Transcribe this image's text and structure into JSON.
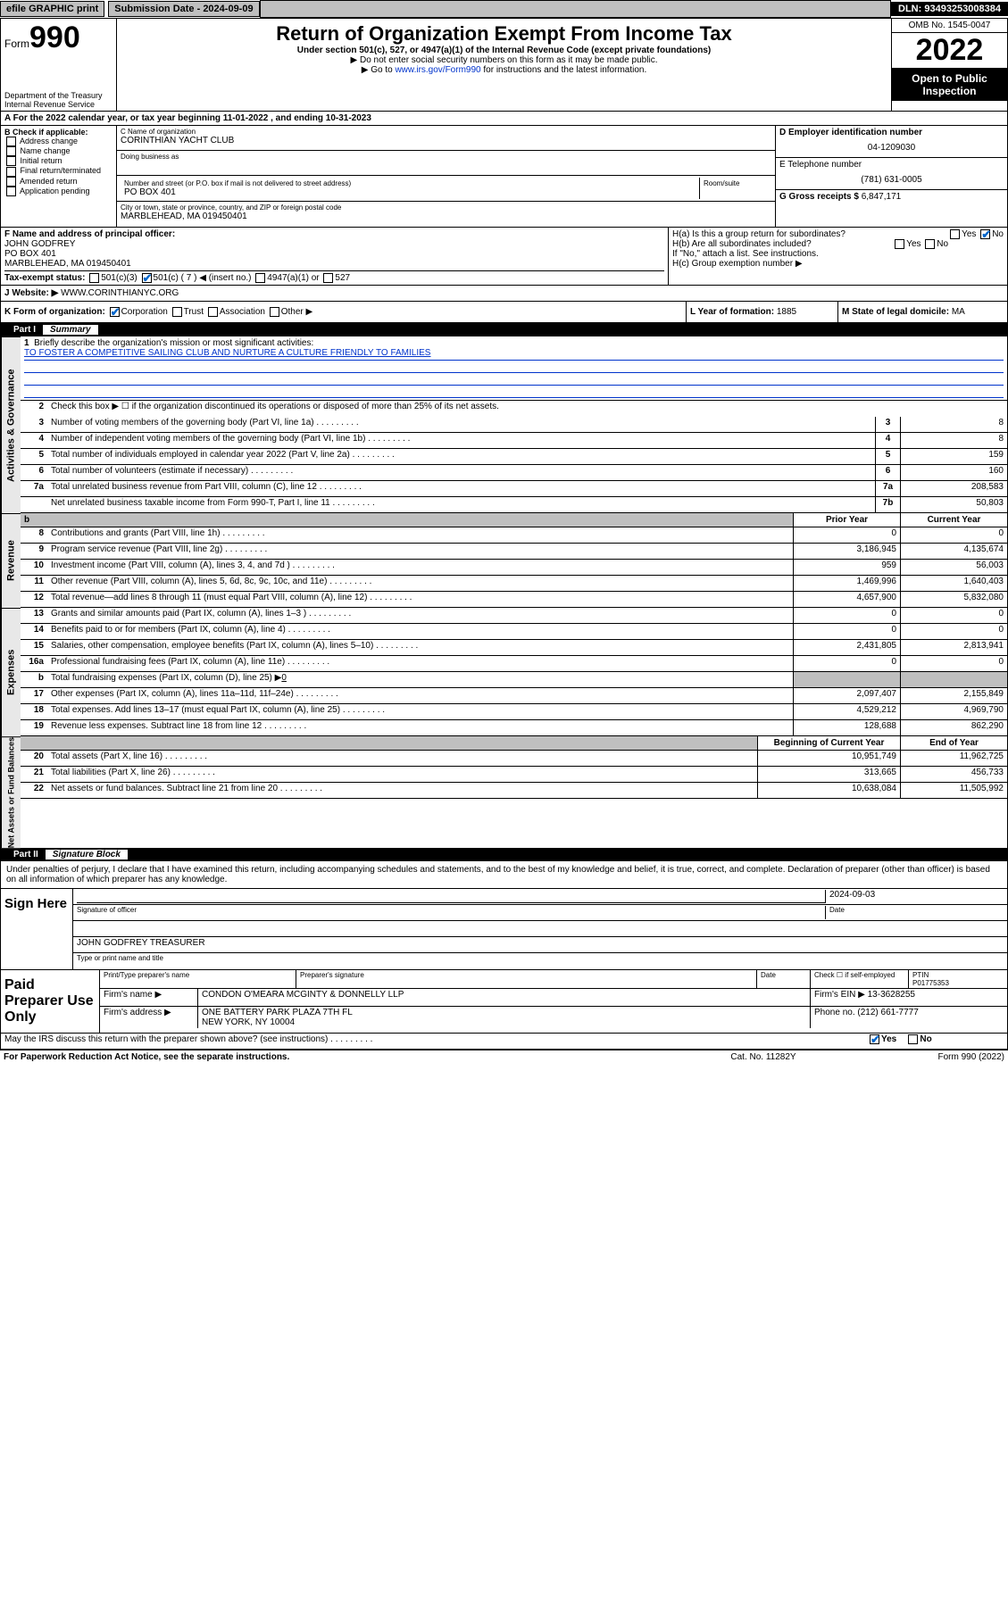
{
  "topbar": {
    "efile": "efile GRAPHIC print",
    "submission": "Submission Date - 2024-09-09",
    "dln": "DLN: 93493253008384"
  },
  "header": {
    "form_word": "Form",
    "form_num": "990",
    "dept": "Department of the Treasury",
    "irs": "Internal Revenue Service",
    "title": "Return of Organization Exempt From Income Tax",
    "sub": "Under section 501(c), 527, or 4947(a)(1) of the Internal Revenue Code (except private foundations)",
    "note1": "▶ Do not enter social security numbers on this form as it may be made public.",
    "note2_pre": "▶ Go to ",
    "note2_link": "www.irs.gov/Form990",
    "note2_post": " for instructions and the latest information.",
    "omb": "OMB No. 1545-0047",
    "year": "2022",
    "open": "Open to Public Inspection"
  },
  "rowA": "A For the 2022 calendar year, or tax year beginning 11-01-2022   , and ending 10-31-2023",
  "colB": {
    "title": "B Check if applicable:",
    "items": [
      "Address change",
      "Name change",
      "Initial return",
      "Final return/terminated",
      "Amended return",
      "Application pending"
    ]
  },
  "colC": {
    "name_lbl": "C Name of organization",
    "name": "CORINTHIAN YACHT CLUB",
    "dba_lbl": "Doing business as",
    "dba": "",
    "street_lbl": "Number and street (or P.O. box if mail is not delivered to street address)",
    "room_lbl": "Room/suite",
    "street": "PO BOX 401",
    "city_lbl": "City or town, state or province, country, and ZIP or foreign postal code",
    "city": "MARBLEHEAD, MA  019450401"
  },
  "colD": {
    "ein_lbl": "D Employer identification number",
    "ein": "04-1209030",
    "tel_lbl": "E Telephone number",
    "tel": "(781) 631-0005",
    "gross_lbl": "G Gross receipts $",
    "gross": "6,847,171"
  },
  "rowF": {
    "lbl": "F Name and address of principal officer:",
    "name": "JOHN GODFREY",
    "addr1": "PO BOX 401",
    "addr2": "MARBLEHEAD, MA  019450401"
  },
  "rowH": {
    "a": "H(a)  Is this a group return for subordinates?",
    "a_yes": "Yes",
    "a_no": "No",
    "b": "H(b)  Are all subordinates included?",
    "b_note": "If \"No,\" attach a list. See instructions.",
    "c": "H(c)  Group exemption number ▶"
  },
  "rowI": {
    "lbl": "Tax-exempt status:",
    "o1": "501(c)(3)",
    "o2": "501(c) ( 7 ) ◀ (insert no.)",
    "o3": "4947(a)(1) or",
    "o4": "527"
  },
  "rowJ": {
    "lbl": "J   Website: ▶",
    "val": "WWW.CORINTHIANYC.ORG"
  },
  "rowK": {
    "lbl": "K Form of organization:",
    "o1": "Corporation",
    "o2": "Trust",
    "o3": "Association",
    "o4": "Other ▶"
  },
  "rowL": {
    "lbl": "L Year of formation:",
    "val": "1885"
  },
  "rowM": {
    "lbl": "M State of legal domicile:",
    "val": "MA"
  },
  "part1": {
    "num": "Part I",
    "title": "Summary"
  },
  "sideLabels": {
    "ag": "Activities & Governance",
    "rev": "Revenue",
    "exp": "Expenses",
    "na": "Net Assets or Fund Balances"
  },
  "summary": {
    "l1_lbl": "Briefly describe the organization's mission or most significant activities:",
    "l1_val": "TO FOSTER A COMPETITIVE SAILING CLUB AND NURTURE A CULTURE FRIENDLY TO FAMILIES",
    "l2": "Check this box ▶ ☐  if the organization discontinued its operations or disposed of more than 25% of its net assets.",
    "lines_single": [
      {
        "n": "3",
        "d": "Number of voting members of the governing body (Part VI, line 1a)",
        "box": "3",
        "v": "8"
      },
      {
        "n": "4",
        "d": "Number of independent voting members of the governing body (Part VI, line 1b)",
        "box": "4",
        "v": "8"
      },
      {
        "n": "5",
        "d": "Total number of individuals employed in calendar year 2022 (Part V, line 2a)",
        "box": "5",
        "v": "159"
      },
      {
        "n": "6",
        "d": "Total number of volunteers (estimate if necessary)",
        "box": "6",
        "v": "160"
      },
      {
        "n": "7a",
        "d": "Total unrelated business revenue from Part VIII, column (C), line 12",
        "box": "7a",
        "v": "208,583"
      },
      {
        "n": "",
        "d": "Net unrelated business taxable income from Form 990-T, Part I, line 11",
        "box": "7b",
        "v": "50,803"
      }
    ],
    "col_head_b": "b",
    "col_head_prior": "Prior Year",
    "col_head_curr": "Current Year",
    "rev_lines": [
      {
        "n": "8",
        "d": "Contributions and grants (Part VIII, line 1h)",
        "p": "0",
        "c": "0"
      },
      {
        "n": "9",
        "d": "Program service revenue (Part VIII, line 2g)",
        "p": "3,186,945",
        "c": "4,135,674"
      },
      {
        "n": "10",
        "d": "Investment income (Part VIII, column (A), lines 3, 4, and 7d )",
        "p": "959",
        "c": "56,003"
      },
      {
        "n": "11",
        "d": "Other revenue (Part VIII, column (A), lines 5, 6d, 8c, 9c, 10c, and 11e)",
        "p": "1,469,996",
        "c": "1,640,403"
      },
      {
        "n": "12",
        "d": "Total revenue—add lines 8 through 11 (must equal Part VIII, column (A), line 12)",
        "p": "4,657,900",
        "c": "5,832,080"
      }
    ],
    "exp_lines": [
      {
        "n": "13",
        "d": "Grants and similar amounts paid (Part IX, column (A), lines 1–3 )",
        "p": "0",
        "c": "0"
      },
      {
        "n": "14",
        "d": "Benefits paid to or for members (Part IX, column (A), line 4)",
        "p": "0",
        "c": "0"
      },
      {
        "n": "15",
        "d": "Salaries, other compensation, employee benefits (Part IX, column (A), lines 5–10)",
        "p": "2,431,805",
        "c": "2,813,941"
      },
      {
        "n": "16a",
        "d": "Professional fundraising fees (Part IX, column (A), line 11e)",
        "p": "0",
        "c": "0"
      }
    ],
    "l16b": {
      "n": "b",
      "d": "Total fundraising expenses (Part IX, column (D), line 25) ▶",
      "v": "0"
    },
    "exp_lines2": [
      {
        "n": "17",
        "d": "Other expenses (Part IX, column (A), lines 11a–11d, 11f–24e)",
        "p": "2,097,407",
        "c": "2,155,849"
      },
      {
        "n": "18",
        "d": "Total expenses. Add lines 13–17 (must equal Part IX, column (A), line 25)",
        "p": "4,529,212",
        "c": "4,969,790"
      },
      {
        "n": "19",
        "d": "Revenue less expenses. Subtract line 18 from line 12",
        "p": "128,688",
        "c": "862,290"
      }
    ],
    "na_head_b": "Beginning of Current Year",
    "na_head_e": "End of Year",
    "na_lines": [
      {
        "n": "20",
        "d": "Total assets (Part X, line 16)",
        "p": "10,951,749",
        "c": "11,962,725"
      },
      {
        "n": "21",
        "d": "Total liabilities (Part X, line 26)",
        "p": "313,665",
        "c": "456,733"
      },
      {
        "n": "22",
        "d": "Net assets or fund balances. Subtract line 21 from line 20",
        "p": "10,638,084",
        "c": "11,505,992"
      }
    ]
  },
  "part2": {
    "num": "Part II",
    "title": "Signature Block"
  },
  "sig": {
    "intro": "Under penalties of perjury, I declare that I have examined this return, including accompanying schedules and statements, and to the best of my knowledge and belief, it is true, correct, and complete. Declaration of preparer (other than officer) is based on all information of which preparer has any knowledge.",
    "sign_here": "Sign Here",
    "sig_officer": "Signature of officer",
    "date_lbl": "Date",
    "date": "2024-09-03",
    "name": "JOHN GODFREY TREASURER",
    "name_lbl": "Type or print name and title"
  },
  "prep": {
    "lbl": "Paid Preparer Use Only",
    "h1": "Print/Type preparer's name",
    "h2": "Preparer's signature",
    "h3": "Date",
    "h4": "Check ☐ if self-employed",
    "h5": "PTIN",
    "ptin": "P01775353",
    "firm_lbl": "Firm's name    ▶",
    "firm": "CONDON O'MEARA MCGINTY & DONNELLY LLP",
    "ein_lbl": "Firm's EIN ▶",
    "ein": "13-3628255",
    "addr_lbl": "Firm's address ▶",
    "addr1": "ONE BATTERY PARK PLAZA 7TH FL",
    "addr2": "NEW YORK, NY  10004",
    "phone_lbl": "Phone no.",
    "phone": "(212) 661-7777"
  },
  "may": {
    "q": "May the IRS discuss this return with the preparer shown above? (see instructions)",
    "yes": "Yes",
    "no": "No"
  },
  "footer": {
    "l": "For Paperwork Reduction Act Notice, see the separate instructions.",
    "m": "Cat. No. 11282Y",
    "r": "Form 990 (2022)"
  },
  "colors": {
    "link": "#0033cc",
    "gray": "#bfbfbf",
    "black": "#000000"
  }
}
